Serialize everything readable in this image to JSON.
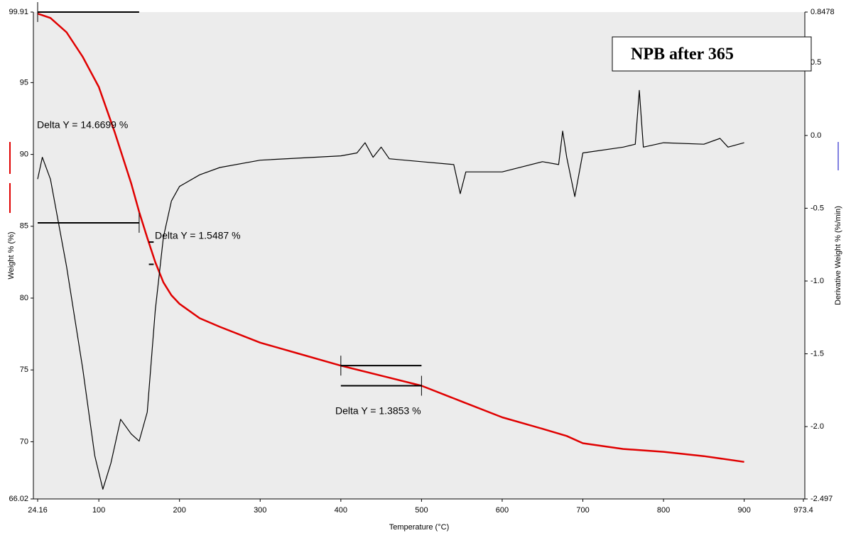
{
  "chart_data": {
    "type": "line",
    "annotation_box": "NPB after 365",
    "xlabel": "Temperature (°C)",
    "ylabel": "Weight % (%)",
    "y2label": "Derivative Weight % (%/min)",
    "xlim": [
      24.16,
      973.4
    ],
    "xticks": [
      24.16,
      100,
      200,
      300,
      400,
      500,
      600,
      700,
      800,
      900,
      973.4
    ],
    "ylim": [
      66.02,
      99.91
    ],
    "yticks": [
      66.02,
      70,
      75,
      80,
      85,
      90,
      95,
      99.91
    ],
    "y2lim": [
      -2.497,
      0.8478
    ],
    "y2ticks": [
      -2.497,
      {
        "value": -2,
        "label": "-2.0"
      },
      -1.5,
      {
        "value": -1,
        "label": "-1.0"
      },
      -0.5,
      {
        "value": 0,
        "label": "0.0"
      },
      0.5,
      0.8478
    ],
    "series": [
      {
        "name": "Weight",
        "color": "#e00000",
        "x": [
          24.16,
          40,
          60,
          80,
          100,
          120,
          140,
          150,
          160,
          170,
          180,
          190,
          200,
          225,
          250,
          300,
          350,
          400,
          450,
          500,
          550,
          600,
          650,
          680,
          700,
          750,
          800,
          850,
          900
        ],
        "values": [
          99.8,
          99.5,
          98.5,
          96.8,
          94.7,
          91.5,
          88,
          86,
          84.2,
          82.5,
          81.1,
          80.2,
          79.6,
          78.6,
          78,
          76.9,
          76.1,
          75.3,
          74.6,
          73.9,
          72.8,
          71.7,
          70.9,
          70.4,
          69.9,
          69.5,
          69.3,
          69,
          68.6
        ]
      },
      {
        "name": "Derivative Weight",
        "color": "#000000",
        "axis": "y2",
        "x": [
          24.16,
          30,
          40,
          60,
          80,
          95,
          105,
          115,
          127,
          140,
          150,
          160,
          170,
          180,
          190,
          200,
          225,
          250,
          300,
          400,
          420,
          430,
          440,
          450,
          460,
          500,
          540,
          548,
          555,
          600,
          650,
          670,
          675,
          680,
          690,
          700,
          750,
          765,
          770,
          775,
          800,
          850,
          870,
          880,
          900
        ],
        "values": [
          -0.3,
          -0.15,
          -0.3,
          -0.9,
          -1.6,
          -2.2,
          -2.43,
          -2.25,
          -1.95,
          -2.05,
          -2.1,
          -1.9,
          -1.2,
          -0.7,
          -0.45,
          -0.35,
          -0.27,
          -0.22,
          -0.17,
          -0.14,
          -0.12,
          -0.05,
          -0.15,
          -0.08,
          -0.16,
          -0.18,
          -0.2,
          -0.4,
          -0.25,
          -0.25,
          -0.18,
          -0.2,
          0.03,
          -0.15,
          -0.42,
          -0.12,
          -0.08,
          -0.06,
          0.31,
          -0.08,
          -0.05,
          -0.06,
          -0.02,
          -0.08,
          -0.05
        ]
      }
    ],
    "steps": [
      {
        "label": "Delta Y = 14.6699 %",
        "x": [
          24.16,
          150
        ],
        "y": [
          99.91,
          85.24
        ]
      },
      {
        "label": "Delta Y = 1.5487 %",
        "x": [
          155,
          168
        ],
        "y": [
          83.9,
          82.35
        ]
      },
      {
        "label": "Delta Y = 1.3853 %",
        "x": [
          400,
          500
        ],
        "y": [
          75.3,
          73.9
        ]
      }
    ]
  }
}
